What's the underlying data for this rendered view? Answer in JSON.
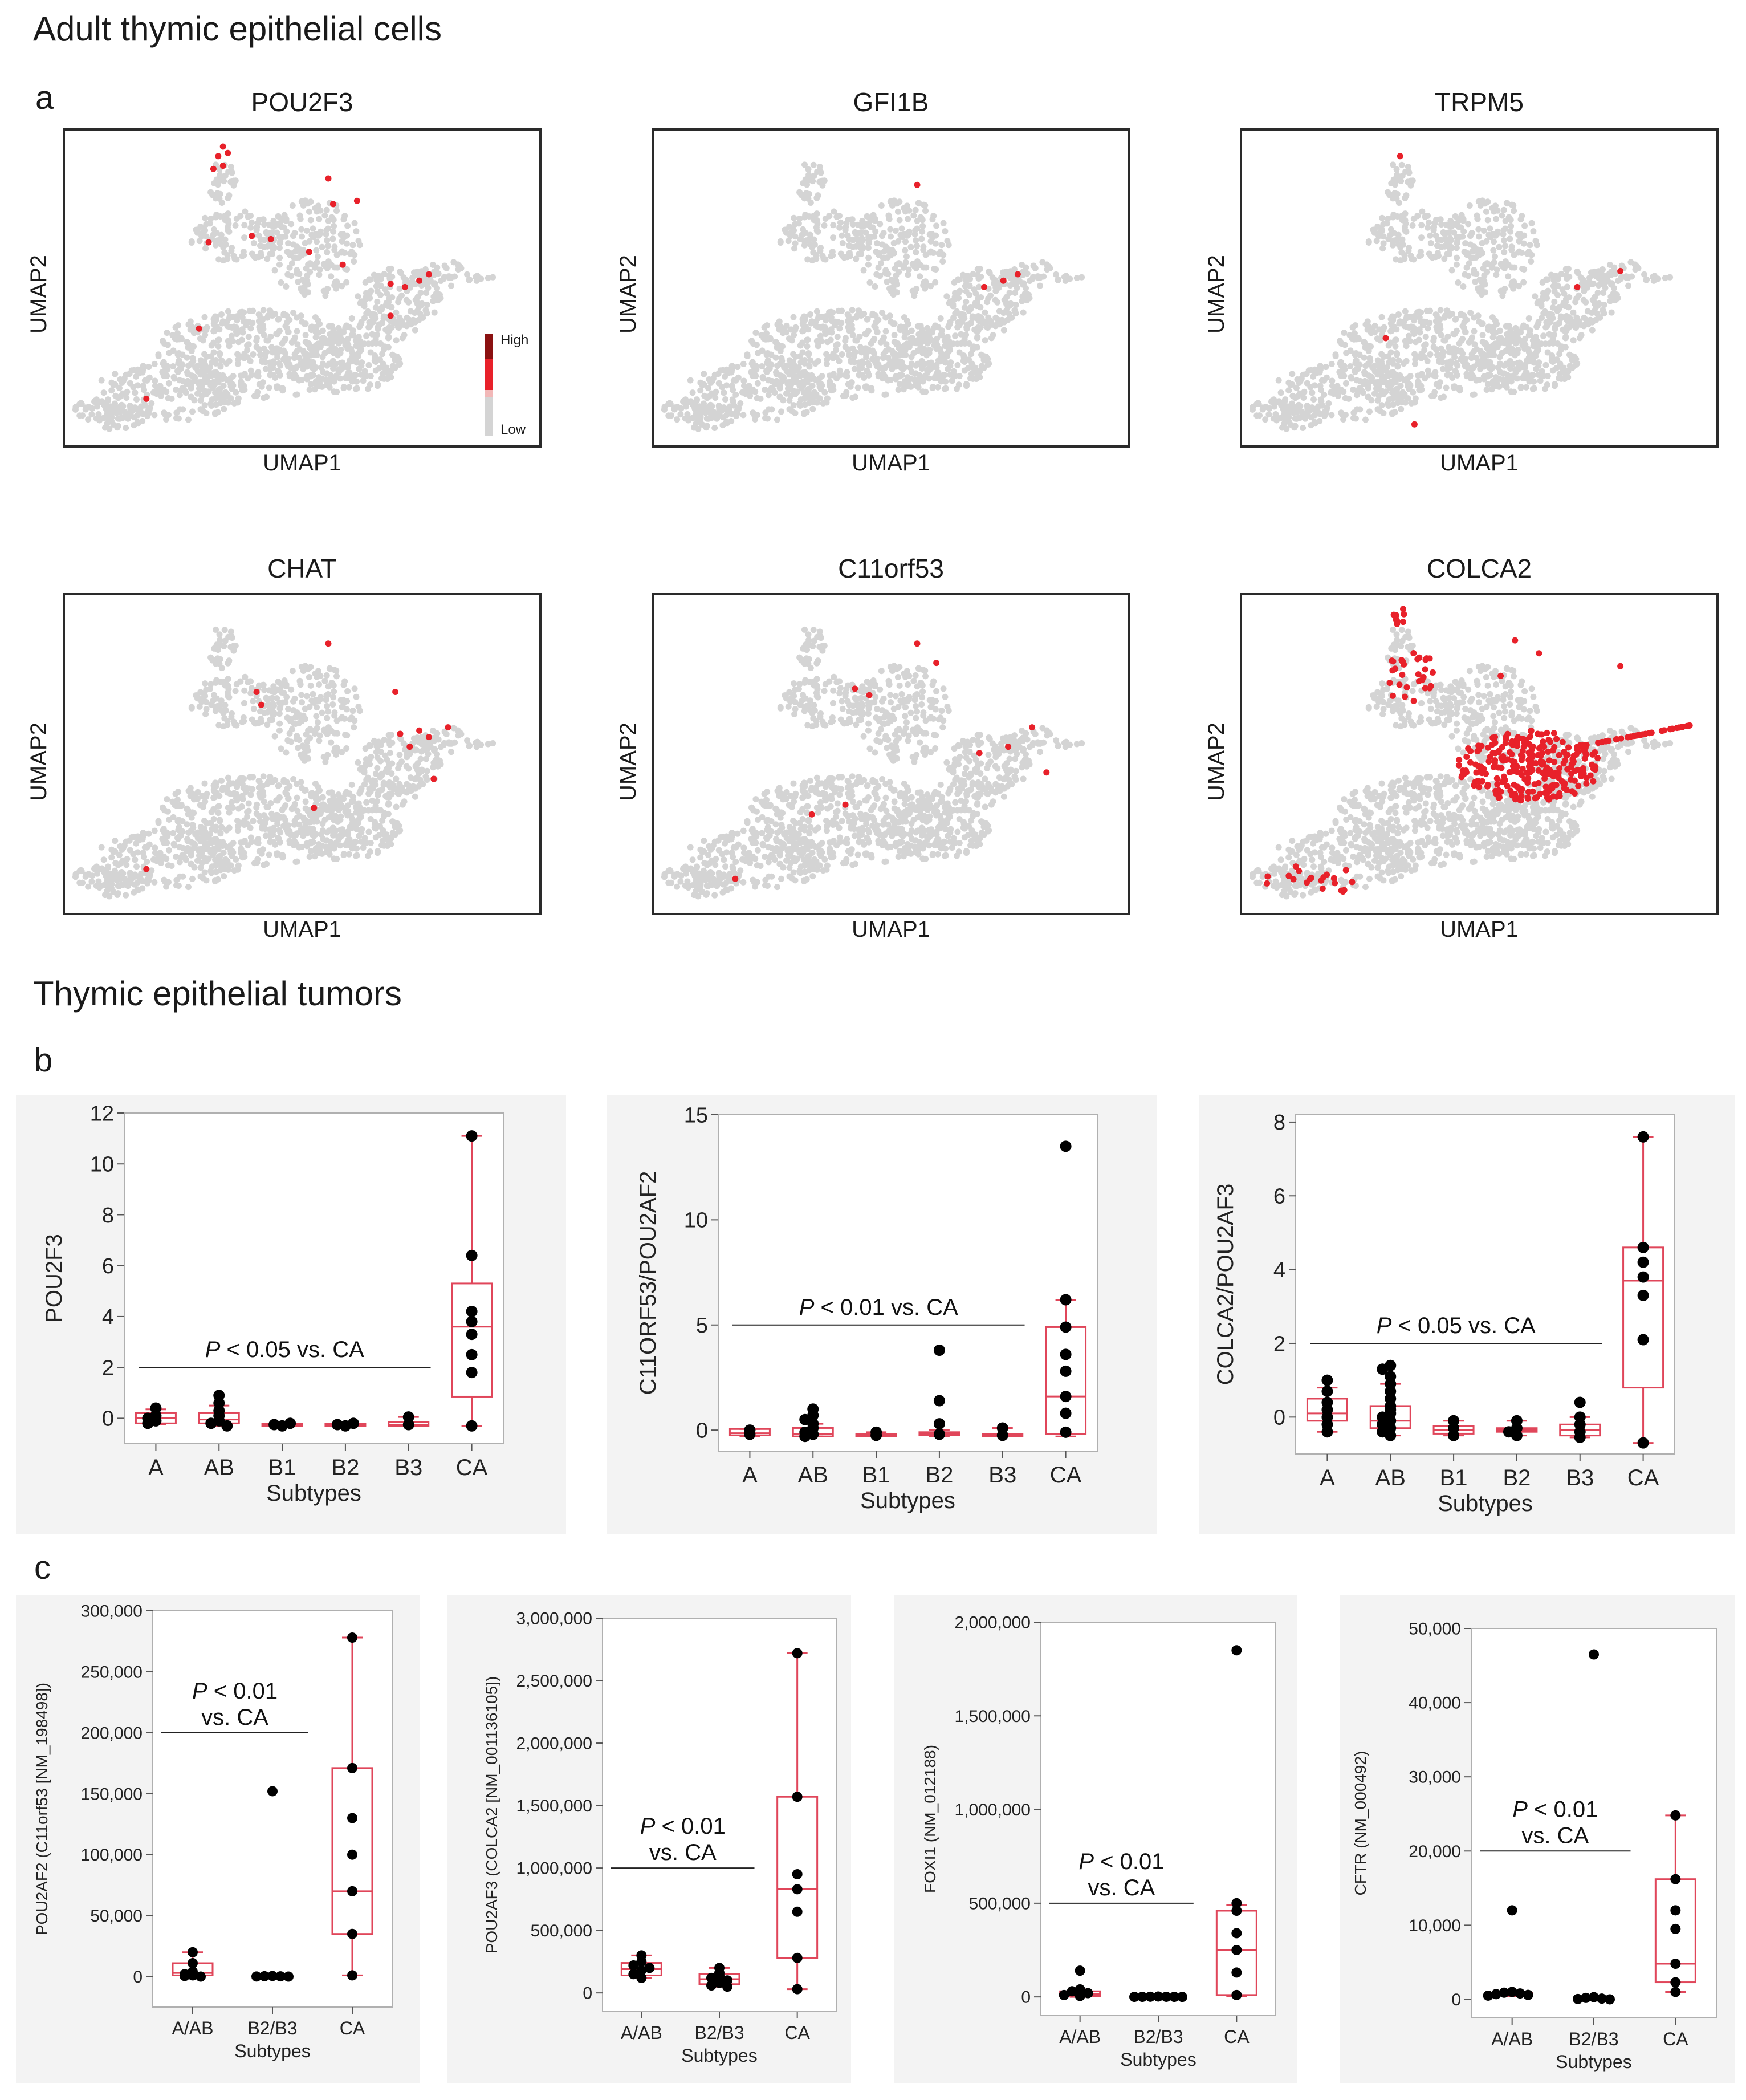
{
  "headings": {
    "adult": "Adult thymic epithelial cells",
    "tumors": "Thymic epithelial tumors",
    "panel_a": "a",
    "panel_b": "b",
    "panel_c": "c"
  },
  "colors": {
    "gray_cell": "#d4d4d4",
    "low": "#f2b8b8",
    "mid": "#e8212a",
    "high": "#8b1111",
    "box": "#e0465a",
    "dot": "#000000"
  },
  "umap_axes": {
    "x": "UMAP1",
    "y": "UMAP2"
  },
  "legend": {
    "high": "High",
    "low": "Low"
  },
  "umaps": [
    {
      "gene": "POU2F3",
      "level": "medium"
    },
    {
      "gene": "GFI1B",
      "level": "high"
    },
    {
      "gene": "TRPM5",
      "level": "high"
    },
    {
      "gene": "CHAT",
      "level": "medium"
    },
    {
      "gene": "C11orf53",
      "level": "medium"
    },
    {
      "gene": "COLCA2",
      "level": "medium"
    }
  ],
  "chart_data": [
    {
      "type": "box",
      "id": "b1",
      "ylabel": "POU2F3",
      "xlabel": "Subtypes",
      "categories": [
        "A",
        "AB",
        "B1",
        "B2",
        "B3",
        "CA"
      ],
      "ylim": [
        -1,
        12
      ],
      "yticks": [
        0,
        2,
        4,
        6,
        8,
        10,
        12
      ],
      "annotation": {
        "p": "P",
        "rest": " < 0.05 vs. CA",
        "y": 2
      },
      "groups": [
        {
          "q1": -0.2,
          "median": 0.0,
          "q3": 0.2,
          "lo": -0.25,
          "hi": 0.35,
          "points": [
            0.4,
            0.1,
            0.0,
            -0.1,
            -0.2
          ]
        },
        {
          "q1": -0.2,
          "median": -0.05,
          "q3": 0.2,
          "lo": -0.3,
          "hi": 0.5,
          "points": [
            0.9,
            0.6,
            0.3,
            0.1,
            -0.1,
            -0.2,
            -0.3
          ]
        },
        {
          "q1": -0.3,
          "median": -0.28,
          "q3": -0.22,
          "lo": -0.3,
          "hi": -0.2,
          "points": [
            -0.3,
            -0.25,
            -0.2
          ]
        },
        {
          "q1": -0.3,
          "median": -0.28,
          "q3": -0.22,
          "lo": -0.3,
          "hi": -0.2,
          "points": [
            -0.3,
            -0.25,
            -0.2
          ]
        },
        {
          "q1": -0.3,
          "median": -0.25,
          "q3": -0.15,
          "lo": -0.3,
          "hi": 0.05,
          "points": [
            0.05,
            -0.25
          ]
        },
        {
          "q1": 0.85,
          "median": 3.6,
          "q3": 5.3,
          "lo": -0.3,
          "hi": 11.1,
          "points": [
            11.1,
            6.4,
            4.2,
            3.8,
            3.3,
            2.5,
            1.8,
            -0.3
          ]
        }
      ]
    },
    {
      "type": "box",
      "id": "b2",
      "ylabel": "C11ORF53/POU2AF2",
      "xlabel": "Subtypes",
      "categories": [
        "A",
        "AB",
        "B1",
        "B2",
        "B3",
        "CA"
      ],
      "ylim": [
        -1,
        15
      ],
      "yticks": [
        0,
        5,
        10,
        15
      ],
      "annotation": {
        "p": "P",
        "rest": " < 0.01 vs. CA",
        "y": 5
      },
      "groups": [
        {
          "q1": -0.25,
          "median": -0.15,
          "q3": 0.05,
          "lo": -0.3,
          "hi": 0.05,
          "points": [
            0.0,
            -0.2
          ]
        },
        {
          "q1": -0.3,
          "median": -0.2,
          "q3": 0.1,
          "lo": -0.3,
          "hi": 0.3,
          "points": [
            1.0,
            0.7,
            0.5,
            0.3,
            0.1,
            -0.1,
            -0.2,
            -0.3
          ]
        },
        {
          "q1": -0.3,
          "median": -0.25,
          "q3": -0.2,
          "lo": -0.3,
          "hi": -0.1,
          "points": [
            -0.1,
            -0.25
          ]
        },
        {
          "q1": -0.25,
          "median": -0.2,
          "q3": -0.1,
          "lo": -0.3,
          "hi": 0.0,
          "points": [
            3.8,
            1.4,
            0.3,
            -0.2
          ]
        },
        {
          "q1": -0.3,
          "median": -0.25,
          "q3": -0.2,
          "lo": -0.3,
          "hi": 0.1,
          "points": [
            0.1,
            -0.25
          ]
        },
        {
          "q1": -0.2,
          "median": 1.6,
          "q3": 4.9,
          "lo": -0.3,
          "hi": 6.2,
          "points": [
            13.5,
            6.2,
            4.9,
            3.6,
            2.8,
            1.6,
            0.8,
            -0.1
          ]
        }
      ]
    },
    {
      "type": "box",
      "id": "b3",
      "ylabel": "COLCA2/POU2AF3",
      "xlabel": "Subtypes",
      "categories": [
        "A",
        "AB",
        "B1",
        "B2",
        "B3",
        "CA"
      ],
      "ylim": [
        -1,
        8.2
      ],
      "yticks": [
        0,
        2,
        4,
        6,
        8
      ],
      "annotation": {
        "p": "P",
        "rest": " < 0.05 vs. CA",
        "y": 2
      },
      "groups": [
        {
          "q1": -0.1,
          "median": 0.1,
          "q3": 0.5,
          "lo": -0.4,
          "hi": 0.8,
          "points": [
            1.0,
            0.7,
            0.4,
            0.2,
            0.0,
            -0.2,
            -0.4
          ]
        },
        {
          "q1": -0.3,
          "median": -0.1,
          "q3": 0.3,
          "lo": -0.5,
          "hi": 0.9,
          "points": [
            1.4,
            1.3,
            1.1,
            0.9,
            0.7,
            0.5,
            0.3,
            0.2,
            0.1,
            0.0,
            -0.1,
            -0.2,
            -0.3,
            -0.4,
            -0.5
          ]
        },
        {
          "q1": -0.45,
          "median": -0.35,
          "q3": -0.25,
          "lo": -0.5,
          "hi": -0.1,
          "points": [
            -0.1,
            -0.3,
            -0.5
          ]
        },
        {
          "q1": -0.4,
          "median": -0.35,
          "q3": -0.3,
          "lo": -0.5,
          "hi": -0.1,
          "points": [
            -0.1,
            -0.3,
            -0.4,
            -0.5
          ]
        },
        {
          "q1": -0.5,
          "median": -0.35,
          "q3": -0.2,
          "lo": -0.55,
          "hi": 0.0,
          "points": [
            0.4,
            0.0,
            -0.2,
            -0.4,
            -0.55
          ]
        },
        {
          "q1": 0.8,
          "median": 3.7,
          "q3": 4.6,
          "lo": -0.7,
          "hi": 7.6,
          "points": [
            7.6,
            4.6,
            4.2,
            3.8,
            3.3,
            2.1,
            -0.7
          ]
        }
      ]
    },
    {
      "type": "box",
      "id": "c1",
      "ylabel": "POU2AF2 (C11orf53 [NM_198498])",
      "xlabel": "Subtypes",
      "categories": [
        "A/AB",
        "B2/B3",
        "CA"
      ],
      "ylim": [
        -25000,
        300000
      ],
      "yticks": [
        0,
        50000,
        100000,
        150000,
        200000,
        250000,
        300000
      ],
      "annotation": {
        "p": "P",
        "rest": " < 0.01",
        "line2": "vs. CA",
        "y": 200000
      },
      "groups": [
        {
          "q1": 1000,
          "median": 3000,
          "q3": 11000,
          "lo": 0,
          "hi": 20000,
          "points": [
            20000,
            11000,
            4000,
            2000,
            1000,
            500,
            0
          ]
        },
        {
          "q1": 0,
          "median": 0,
          "q3": 500,
          "lo": 0,
          "hi": 1000,
          "points": [
            152000,
            500,
            300,
            200,
            100,
            0
          ]
        },
        {
          "q1": 35000,
          "median": 70000,
          "q3": 171000,
          "lo": 1000,
          "hi": 278000,
          "points": [
            278000,
            171000,
            130000,
            100000,
            70000,
            35000,
            1000
          ]
        }
      ]
    },
    {
      "type": "box",
      "id": "c2",
      "ylabel": "POU2AF3 (COLCA2 [NM_001136105])",
      "xlabel": "Subtypes",
      "categories": [
        "A/AB",
        "B2/B3",
        "CA"
      ],
      "ylim": [
        -150000,
        3000000
      ],
      "yticks": [
        0,
        500000,
        1000000,
        1500000,
        2000000,
        2500000,
        3000000
      ],
      "annotation": {
        "p": "P",
        "rest": " < 0.01",
        "line2": "vs. CA",
        "y": 1000000
      },
      "groups": [
        {
          "q1": 140000,
          "median": 190000,
          "q3": 240000,
          "lo": 120000,
          "hi": 300000,
          "points": [
            300000,
            250000,
            220000,
            200000,
            180000,
            150000,
            120000
          ]
        },
        {
          "q1": 70000,
          "median": 110000,
          "q3": 150000,
          "lo": 50000,
          "hi": 200000,
          "points": [
            200000,
            160000,
            140000,
            120000,
            100000,
            80000,
            60000,
            50000
          ]
        },
        {
          "q1": 280000,
          "median": 830000,
          "q3": 1570000,
          "lo": 30000,
          "hi": 2720000,
          "points": [
            2720000,
            1570000,
            950000,
            830000,
            650000,
            280000,
            30000
          ]
        }
      ]
    },
    {
      "type": "box",
      "id": "c3",
      "ylabel": "FOXI1 (NM_012188)",
      "xlabel": "Subtypes",
      "categories": [
        "A/AB",
        "B2/B3",
        "CA"
      ],
      "ylim": [
        -100000,
        2000000
      ],
      "yticks": [
        0,
        500000,
        1000000,
        1500000,
        2000000
      ],
      "annotation": {
        "p": "P",
        "rest": " < 0.01",
        "line2": "vs. CA",
        "y": 500000
      },
      "groups": [
        {
          "q1": 5000,
          "median": 15000,
          "q3": 30000,
          "lo": 0,
          "hi": 40000,
          "points": [
            140000,
            40000,
            30000,
            20000,
            10000,
            5000
          ]
        },
        {
          "q1": 0,
          "median": 0,
          "q3": 1000,
          "lo": 0,
          "hi": 2000,
          "points": [
            2000,
            1000,
            500,
            300,
            200,
            100,
            0
          ]
        },
        {
          "q1": 10000,
          "median": 250000,
          "q3": 460000,
          "lo": 5000,
          "hi": 490000,
          "points": [
            1850000,
            500000,
            460000,
            340000,
            250000,
            130000,
            10000
          ]
        }
      ]
    },
    {
      "type": "box",
      "id": "c4",
      "ylabel": "CFTR (NM_000492)",
      "xlabel": "Subtypes",
      "categories": [
        "A/AB",
        "B2/B3",
        "CA"
      ],
      "ylim": [
        -2500,
        50000
      ],
      "yticks": [
        0,
        10000,
        20000,
        30000,
        40000,
        50000
      ],
      "annotation": {
        "p": "P",
        "rest": " < 0.01",
        "line2": "vs. CA",
        "y": 20000
      },
      "groups": [
        {
          "q1": 500,
          "median": 700,
          "q3": 900,
          "lo": 400,
          "hi": 1000,
          "points": [
            12000,
            1000,
            900,
            800,
            700,
            600,
            500
          ]
        },
        {
          "q1": 0,
          "median": 100,
          "q3": 200,
          "lo": 0,
          "hi": 300,
          "points": [
            46500,
            300,
            200,
            100,
            50,
            0
          ]
        },
        {
          "q1": 2300,
          "median": 4800,
          "q3": 16200,
          "lo": 1000,
          "hi": 24800,
          "points": [
            24800,
            16200,
            12000,
            9500,
            4800,
            2300,
            1000
          ]
        }
      ]
    }
  ]
}
